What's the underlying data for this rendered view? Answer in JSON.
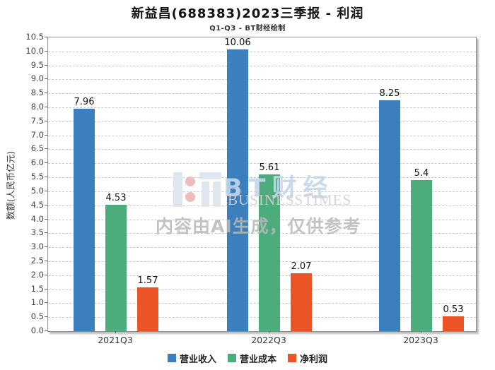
{
  "title": "新益昌(688383)2023三季报 - 利润",
  "subtitle": "Q1-Q3 - BT财经绘制",
  "watermark": {
    "brand_cn": "BT财经",
    "brand_en": "BUSINESSTIMES",
    "disclaimer": "内容由AI生成，仅供参考"
  },
  "chart_data": {
    "type": "bar",
    "title": "新益昌(688383)2023三季报 - 利润",
    "subtitle": "Q1-Q3 - BT财经绘制",
    "categories": [
      "2021Q3",
      "2022Q3",
      "2023Q3"
    ],
    "series": [
      {
        "name": "营业收入",
        "color": "#3b80bc",
        "values": [
          7.96,
          10.06,
          8.25
        ]
      },
      {
        "name": "营业成本",
        "color": "#4cac7c",
        "values": [
          4.53,
          5.61,
          5.4
        ]
      },
      {
        "name": "净利润",
        "color": "#ea5426",
        "values": [
          1.57,
          2.07,
          0.53
        ]
      }
    ],
    "xlabel": "",
    "ylabel": "数额(人民币亿元)",
    "ylim": [
      0,
      10.5
    ],
    "ytick_step": 0.5,
    "ytick_labels": [
      "0.0",
      "0.5",
      "1.0",
      "1.5",
      "2.0",
      "2.5",
      "3.0",
      "3.5",
      "4.0",
      "4.5",
      "5.0",
      "5.5",
      "6.0",
      "6.5",
      "7.0",
      "7.5",
      "8.0",
      "8.5",
      "9.0",
      "9.5",
      "10.0",
      "10.5"
    ],
    "grid": true,
    "grid_style": "dashed",
    "legend_position": "bottom"
  }
}
